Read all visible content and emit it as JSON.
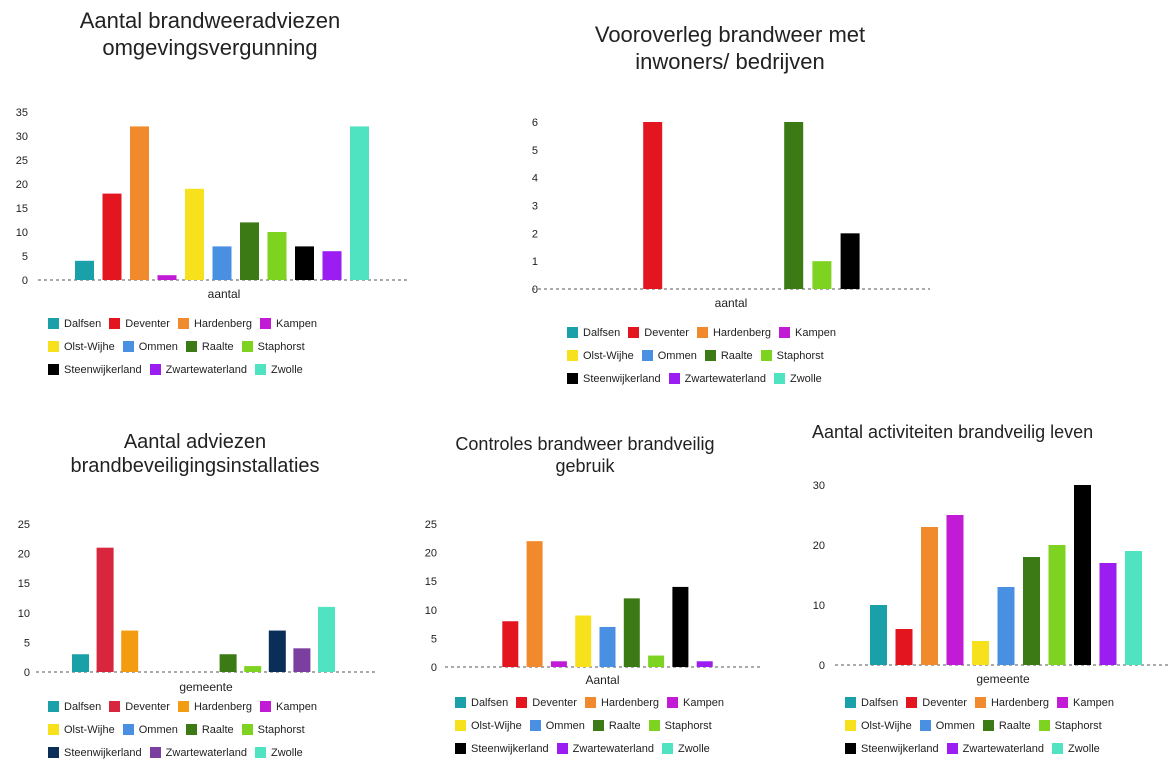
{
  "charts": [
    {
      "id": "c1",
      "chart_data": {
        "type": "bar",
        "title": "Aantal brandweeradviezen omgevingsvergunning",
        "title_lines": [
          "Aantal brandweeradviezen",
          "omgevingsvergunning"
        ],
        "xlabel": "aantal",
        "ylabel": "",
        "ylim": [
          0,
          35
        ],
        "yticks": [
          0,
          5,
          10,
          15,
          20,
          25,
          30,
          35
        ],
        "series": [
          {
            "name": "Dalfsen",
            "value": 4,
            "color": "#1aa0a8"
          },
          {
            "name": "Deventer",
            "value": 18,
            "color": "#e3161f"
          },
          {
            "name": "Hardenberg",
            "value": 32,
            "color": "#f08a2c"
          },
          {
            "name": "Kampen",
            "value": 1,
            "color": "#c11bd6"
          },
          {
            "name": "Olst-Wijhe",
            "value": 19,
            "color": "#f7e11d"
          },
          {
            "name": "Ommen",
            "value": 7,
            "color": "#4a90e2"
          },
          {
            "name": "Raalte",
            "value": 12,
            "color": "#3c7a15"
          },
          {
            "name": "Staphorst",
            "value": 10,
            "color": "#7ed321"
          },
          {
            "name": "Steenwijkerland",
            "value": 7,
            "color": "#000000"
          },
          {
            "name": "Zwartewaterland",
            "value": 6,
            "color": "#9b1df2"
          },
          {
            "name": "Zwolle",
            "value": 32,
            "color": "#50e3c2"
          }
        ],
        "legend": {
          "position": "bottom"
        },
        "grid": false
      }
    },
    {
      "id": "c2",
      "chart_data": {
        "type": "bar",
        "title": "Vooroverleg brandweer met inwoners/ bedrijven",
        "title_lines": [
          "Vooroverleg brandweer met",
          "inwoners/ bedrijven"
        ],
        "xlabel": "aantal",
        "ylabel": "",
        "ylim": [
          0,
          6
        ],
        "yticks": [
          0,
          1,
          2,
          3,
          4,
          5,
          6
        ],
        "series": [
          {
            "name": "Dalfsen",
            "value": 0,
            "color": "#1aa0a8"
          },
          {
            "name": "Deventer",
            "value": 6,
            "color": "#e3161f"
          },
          {
            "name": "Hardenberg",
            "value": 0,
            "color": "#f08a2c"
          },
          {
            "name": "Kampen",
            "value": 0,
            "color": "#c11bd6"
          },
          {
            "name": "Olst-Wijhe",
            "value": 0,
            "color": "#f7e11d"
          },
          {
            "name": "Ommen",
            "value": 0,
            "color": "#4a90e2"
          },
          {
            "name": "Raalte",
            "value": 6,
            "color": "#3c7a15"
          },
          {
            "name": "Staphorst",
            "value": 1,
            "color": "#7ed321"
          },
          {
            "name": "Steenwijkerland",
            "value": 2,
            "color": "#000000"
          },
          {
            "name": "Zwartewaterland",
            "value": 0,
            "color": "#9b1df2"
          },
          {
            "name": "Zwolle",
            "value": 0,
            "color": "#50e3c2"
          }
        ],
        "legend": {
          "position": "bottom"
        },
        "grid": false
      }
    },
    {
      "id": "c3",
      "chart_data": {
        "type": "bar",
        "title": "Aantal adviezen brandbeveiligingsinstallaties",
        "title_lines": [
          "Aantal adviezen",
          "brandbeveiligingsinstallaties"
        ],
        "xlabel": "gemeente",
        "ylabel": "",
        "ylim": [
          0,
          25
        ],
        "yticks": [
          0,
          5,
          10,
          15,
          20,
          25
        ],
        "series": [
          {
            "name": "Dalfsen",
            "value": 3,
            "color": "#1aa0a8"
          },
          {
            "name": "Deventer",
            "value": 21,
            "color": "#d7263d"
          },
          {
            "name": "Hardenberg",
            "value": 7,
            "color": "#f39c12"
          },
          {
            "name": "Kampen",
            "value": 0,
            "color": "#c11bd6"
          },
          {
            "name": "Olst-Wijhe",
            "value": 0,
            "color": "#f7e11d"
          },
          {
            "name": "Ommen",
            "value": 0,
            "color": "#4a90e2"
          },
          {
            "name": "Raalte",
            "value": 3,
            "color": "#3c7a15"
          },
          {
            "name": "Staphorst",
            "value": 1,
            "color": "#7ed321"
          },
          {
            "name": "Steenwijkerland",
            "value": 7,
            "color": "#0b2e59"
          },
          {
            "name": "Zwartewaterland",
            "value": 4,
            "color": "#7b3fa0"
          },
          {
            "name": "Zwolle",
            "value": 11,
            "color": "#50e3c2"
          }
        ],
        "legend": {
          "position": "bottom"
        },
        "grid": false
      }
    },
    {
      "id": "c4",
      "chart_data": {
        "type": "bar",
        "title": "Controles brandweer brandveilig gebruik",
        "title_lines": [
          "Controles brandweer brandveilig",
          "gebruik"
        ],
        "xlabel": "Aantal",
        "ylabel": "",
        "ylim": [
          0,
          25
        ],
        "yticks": [
          0,
          5,
          10,
          15,
          20,
          25
        ],
        "series": [
          {
            "name": "Dalfsen",
            "value": 0,
            "color": "#1aa0a8"
          },
          {
            "name": "Deventer",
            "value": 8,
            "color": "#e3161f"
          },
          {
            "name": "Hardenberg",
            "value": 22,
            "color": "#f08a2c"
          },
          {
            "name": "Kampen",
            "value": 1,
            "color": "#c11bd6"
          },
          {
            "name": "Olst-Wijhe",
            "value": 9,
            "color": "#f7e11d"
          },
          {
            "name": "Ommen",
            "value": 7,
            "color": "#4a90e2"
          },
          {
            "name": "Raalte",
            "value": 12,
            "color": "#3c7a15"
          },
          {
            "name": "Staphorst",
            "value": 2,
            "color": "#7ed321"
          },
          {
            "name": "Steenwijkerland",
            "value": 14,
            "color": "#000000"
          },
          {
            "name": "Zwartewaterland",
            "value": 1,
            "color": "#9b1df2"
          },
          {
            "name": "Zwolle",
            "value": 0,
            "color": "#50e3c2"
          }
        ],
        "legend": {
          "position": "bottom"
        },
        "grid": false
      }
    },
    {
      "id": "c5",
      "chart_data": {
        "type": "bar",
        "title": "Aantal activiteiten brandveilig leven",
        "title_lines": [
          "Aantal activiteiten brandveilig leven"
        ],
        "xlabel": "gemeente",
        "ylabel": "",
        "ylim": [
          0,
          30
        ],
        "yticks": [
          0,
          10,
          20,
          30
        ],
        "series": [
          {
            "name": "Dalfsen",
            "value": 10,
            "color": "#1aa0a8"
          },
          {
            "name": "Deventer",
            "value": 6,
            "color": "#e3161f"
          },
          {
            "name": "Hardenberg",
            "value": 23,
            "color": "#f08a2c"
          },
          {
            "name": "Kampen",
            "value": 25,
            "color": "#c11bd6"
          },
          {
            "name": "Olst-Wijhe",
            "value": 4,
            "color": "#f7e11d"
          },
          {
            "name": "Ommen",
            "value": 13,
            "color": "#4a90e2"
          },
          {
            "name": "Raalte",
            "value": 18,
            "color": "#3c7a15"
          },
          {
            "name": "Staphorst",
            "value": 20,
            "color": "#7ed321"
          },
          {
            "name": "Steenwijkerland",
            "value": 30,
            "color": "#000000"
          },
          {
            "name": "Zwartewaterland",
            "value": 17,
            "color": "#9b1df2"
          },
          {
            "name": "Zwolle",
            "value": 19,
            "color": "#50e3c2"
          }
        ],
        "legend": {
          "position": "bottom"
        },
        "grid": false
      }
    }
  ]
}
